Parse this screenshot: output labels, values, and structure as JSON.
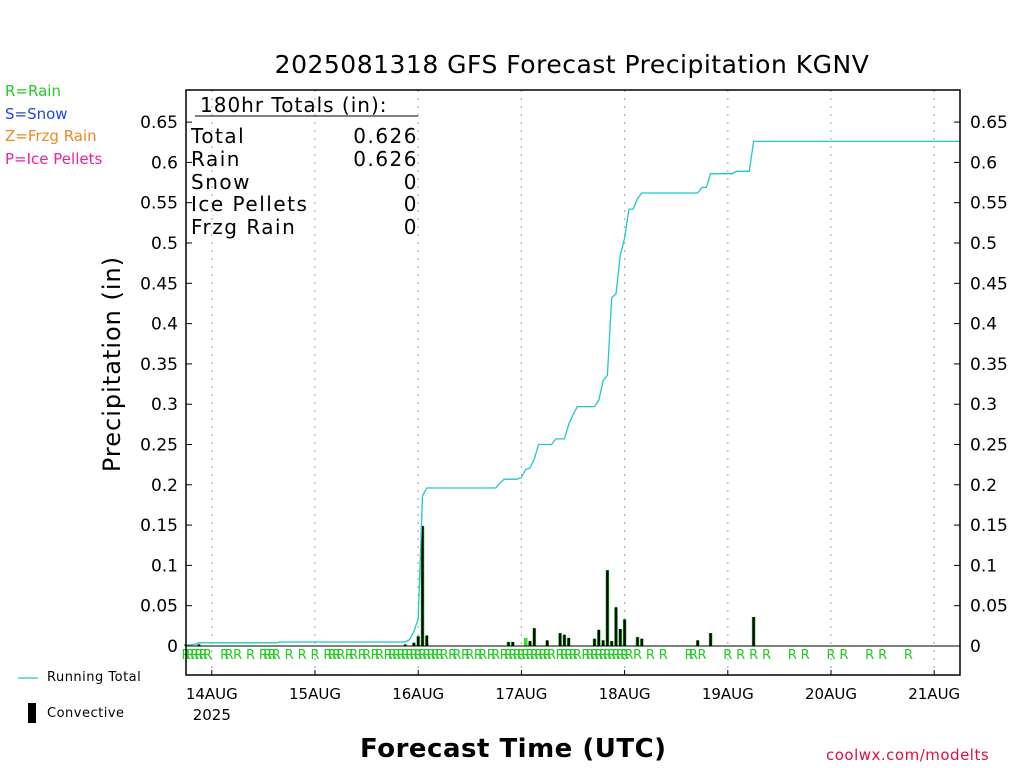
{
  "title": "2025081318 GFS Forecast Precipitation KGNV",
  "type_legend": [
    {
      "label": "R=Rain",
      "color": "#22cc22"
    },
    {
      "label": "S=Snow",
      "color": "#2244ee"
    },
    {
      "label": "Z=Frzg Rain",
      "color": "#ee8822"
    },
    {
      "label": "P=Ice Pellets",
      "color": "#ee2299"
    }
  ],
  "totals": {
    "heading": "180hr Totals (in):",
    "rows": [
      {
        "label": "Total",
        "value": "0.626"
      },
      {
        "label": "Rain",
        "value": "0.626"
      },
      {
        "label": "Snow",
        "value": "0"
      },
      {
        "label": "Ice Pellets",
        "value": "0"
      },
      {
        "label": "Frzg Rain",
        "value": "0"
      }
    ]
  },
  "series_key": {
    "running_total": "Running Total",
    "convective": "Convective"
  },
  "credit": "coolwx.com/modelts",
  "colors": {
    "running_total": "#20c8c8",
    "precip_bar": "#33dd33",
    "convective_bar": "#000000",
    "rain_marker": "#22cc22"
  },
  "chart_data": {
    "type": "bar",
    "title": "2025081318 GFS Forecast Precipitation KGNV",
    "xlabel": "Forecast Time (UTC)",
    "ylabel": "Precipitation (in)",
    "x_unit": "hours since 2025-08-13 18 UTC",
    "xlim": [
      0,
      180
    ],
    "ylim": [
      -0.0125,
      0.6875
    ],
    "yticks": [
      0,
      0.05,
      0.1,
      0.15,
      0.2,
      0.25,
      0.3,
      0.35,
      0.4,
      0.45,
      0.5,
      0.55,
      0.6,
      0.65
    ],
    "ytick_labels": [
      "0",
      "0.05",
      "0.1",
      "0.15",
      "0.2",
      "0.25",
      "0.3",
      "0.35",
      "0.4",
      "0.45",
      "0.5",
      "0.55",
      "0.6",
      "0.65"
    ],
    "xticks": [
      {
        "hour": 6,
        "label": "14AUG",
        "sublabel": "2025"
      },
      {
        "hour": 30,
        "label": "15AUG"
      },
      {
        "hour": 54,
        "label": "16AUG"
      },
      {
        "hour": 78,
        "label": "17AUG"
      },
      {
        "hour": 102,
        "label": "18AUG"
      },
      {
        "hour": 126,
        "label": "19AUG"
      },
      {
        "hour": 150,
        "label": "20AUG"
      },
      {
        "hour": 174,
        "label": "21AUG"
      }
    ],
    "grid": "vertical dotted at day boundaries",
    "series": [
      {
        "name": "Running Total",
        "type": "line",
        "points": [
          [
            0,
            0.001
          ],
          [
            2,
            0.002
          ],
          [
            3,
            0.004
          ],
          [
            21,
            0.004
          ],
          [
            22,
            0.005
          ],
          [
            51,
            0.005
          ],
          [
            52,
            0.008
          ],
          [
            53,
            0.018
          ],
          [
            54,
            0.034
          ],
          [
            55,
            0.186
          ],
          [
            56,
            0.196
          ],
          [
            72,
            0.196
          ],
          [
            73,
            0.202
          ],
          [
            74,
            0.207
          ],
          [
            77,
            0.207
          ],
          [
            78,
            0.209
          ],
          [
            79,
            0.219
          ],
          [
            80,
            0.221
          ],
          [
            81,
            0.232
          ],
          [
            82,
            0.25
          ],
          [
            85,
            0.25
          ],
          [
            86,
            0.257
          ],
          [
            88,
            0.257
          ],
          [
            89,
            0.275
          ],
          [
            90,
            0.287
          ],
          [
            91,
            0.297
          ],
          [
            95,
            0.297
          ],
          [
            96,
            0.305
          ],
          [
            97,
            0.329
          ],
          [
            98,
            0.336
          ],
          [
            99,
            0.432
          ],
          [
            100,
            0.437
          ],
          [
            101,
            0.485
          ],
          [
            102,
            0.506
          ],
          [
            103,
            0.542
          ],
          [
            104,
            0.542
          ],
          [
            105,
            0.555
          ],
          [
            106,
            0.562
          ],
          [
            119,
            0.562
          ],
          [
            120,
            0.569
          ],
          [
            121,
            0.569
          ],
          [
            122,
            0.586
          ],
          [
            127,
            0.586
          ],
          [
            128,
            0.589
          ],
          [
            131,
            0.589
          ],
          [
            132,
            0.626
          ],
          [
            180,
            0.626
          ]
        ]
      },
      {
        "name": "Convective",
        "type": "bar",
        "points": [
          [
            0,
            0.002
          ],
          [
            3,
            0.002
          ],
          [
            51,
            0.002
          ],
          [
            53,
            0.004
          ],
          [
            54,
            0.012
          ],
          [
            55,
            0.149
          ],
          [
            56,
            0.013
          ],
          [
            75,
            0.005
          ],
          [
            76,
            0.005
          ],
          [
            80,
            0.006
          ],
          [
            81,
            0.022
          ],
          [
            84,
            0.007
          ],
          [
            87,
            0.016
          ],
          [
            88,
            0.014
          ],
          [
            89,
            0.01
          ],
          [
            95,
            0.009
          ],
          [
            96,
            0.02
          ],
          [
            97,
            0.007
          ],
          [
            98,
            0.094
          ],
          [
            99,
            0.006
          ],
          [
            100,
            0.048
          ],
          [
            101,
            0.021
          ],
          [
            102,
            0.033
          ],
          [
            105,
            0.011
          ],
          [
            106,
            0.009
          ],
          [
            119,
            0.007
          ],
          [
            122,
            0.016
          ],
          [
            132,
            0.036
          ]
        ]
      },
      {
        "name": "R=Rain",
        "type": "bar",
        "points": [
          [
            0,
            0.002
          ],
          [
            3,
            0.002
          ],
          [
            53,
            0.004
          ],
          [
            54,
            0.012
          ],
          [
            55,
            0.149
          ],
          [
            56,
            0.013
          ],
          [
            75,
            0.005
          ],
          [
            76,
            0.005
          ],
          [
            79,
            0.01
          ],
          [
            80,
            0.006
          ],
          [
            81,
            0.022
          ],
          [
            84,
            0.007
          ],
          [
            87,
            0.016
          ],
          [
            88,
            0.014
          ],
          [
            89,
            0.01
          ],
          [
            95,
            0.009
          ],
          [
            96,
            0.02
          ],
          [
            97,
            0.007
          ],
          [
            98,
            0.094
          ],
          [
            99,
            0.006
          ],
          [
            100,
            0.048
          ],
          [
            101,
            0.021
          ],
          [
            102,
            0.033
          ],
          [
            105,
            0.011
          ],
          [
            106,
            0.009
          ],
          [
            119,
            0.007
          ],
          [
            122,
            0.016
          ],
          [
            132,
            0.036
          ]
        ]
      }
    ],
    "rain_marker_label": "R",
    "rain_marker_hours": [
      0,
      1,
      2,
      3,
      4,
      5,
      9,
      10,
      12,
      15,
      18,
      19,
      20,
      21,
      24,
      27,
      30,
      33,
      34,
      35,
      36,
      38,
      39,
      41,
      42,
      44,
      45,
      47,
      48,
      49,
      50,
      51,
      52,
      53,
      54,
      55,
      56,
      57,
      58,
      59,
      60,
      62,
      63,
      65,
      66,
      68,
      69,
      71,
      72,
      74,
      75,
      76,
      77,
      78,
      79,
      80,
      81,
      82,
      83,
      84,
      85,
      87,
      88,
      89,
      90,
      91,
      93,
      94,
      95,
      96,
      97,
      98,
      99,
      100,
      101,
      102,
      103,
      105,
      108,
      111,
      117,
      118,
      120,
      126,
      129,
      132,
      135,
      141,
      144,
      150,
      153,
      159,
      162,
      168
    ]
  }
}
